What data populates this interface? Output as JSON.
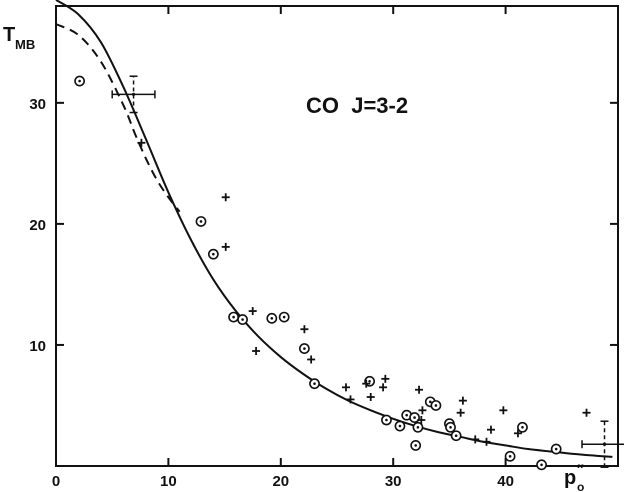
{
  "chart_data": {
    "type": "scatter",
    "title": "",
    "annotation": "CO  J=3-2",
    "ylabel": "T",
    "ylabel_sub": "MB",
    "xlabel": "p",
    "xlabel_sub": "o",
    "xlabel_sup": "″",
    "xlim": [
      0,
      50
    ],
    "ylim": [
      0,
      38
    ],
    "x_ticks": [
      0,
      10,
      20,
      30,
      40
    ],
    "x_tick_labels": [
      "0",
      "10",
      "20",
      "30",
      "40"
    ],
    "y_ticks": [
      10,
      20,
      30
    ],
    "y_tick_labels": [
      "10",
      "20",
      "30"
    ],
    "grid": false,
    "legend": "none",
    "series": [
      {
        "marker": "circled-dot",
        "points": [
          [
            2.1,
            31.8
          ],
          [
            12.9,
            20.2
          ],
          [
            14.0,
            17.5
          ],
          [
            15.8,
            12.3
          ],
          [
            16.6,
            12.1
          ],
          [
            19.2,
            12.2
          ],
          [
            20.3,
            12.3
          ],
          [
            22.1,
            9.7
          ],
          [
            23.0,
            6.8
          ],
          [
            27.9,
            7.0
          ],
          [
            29.4,
            3.8
          ],
          [
            30.6,
            3.3
          ],
          [
            31.2,
            4.2
          ],
          [
            31.9,
            4.0
          ],
          [
            32.0,
            1.7
          ],
          [
            32.2,
            3.2
          ],
          [
            33.3,
            5.3
          ],
          [
            33.8,
            5.0
          ],
          [
            35.0,
            3.5
          ],
          [
            35.1,
            3.2
          ],
          [
            35.6,
            2.5
          ],
          [
            40.4,
            0.8
          ],
          [
            41.5,
            3.2
          ],
          [
            43.2,
            0.1
          ],
          [
            44.5,
            1.4
          ]
        ]
      },
      {
        "marker": "plus",
        "points": [
          [
            7.6,
            26.7
          ],
          [
            15.1,
            22.2
          ],
          [
            15.1,
            18.1
          ],
          [
            17.5,
            12.8
          ],
          [
            17.8,
            9.5
          ],
          [
            22.1,
            11.3
          ],
          [
            22.7,
            8.8
          ],
          [
            25.8,
            6.5
          ],
          [
            26.2,
            5.5
          ],
          [
            27.6,
            6.8
          ],
          [
            28.0,
            5.7
          ],
          [
            29.1,
            6.5
          ],
          [
            29.3,
            7.2
          ],
          [
            32.3,
            6.3
          ],
          [
            32.6,
            4.6
          ],
          [
            32.5,
            3.8
          ],
          [
            36.0,
            4.4
          ],
          [
            36.2,
            5.4
          ],
          [
            37.3,
            2.2
          ],
          [
            38.3,
            2.0
          ],
          [
            38.7,
            3.0
          ],
          [
            39.8,
            4.6
          ],
          [
            41.1,
            2.7
          ],
          [
            47.2,
            4.4
          ]
        ]
      }
    ],
    "error_bars": [
      {
        "x": 6.9,
        "y": 30.7,
        "x_err": 1.9,
        "y_err": 1.5
      },
      {
        "x": 48.8,
        "y": 1.8,
        "x_err": 2.0,
        "y_err": 1.9
      }
    ],
    "curves": [
      {
        "style": "solid",
        "x": [
          0,
          2,
          4,
          6,
          8,
          10,
          12,
          14,
          16,
          18,
          20,
          22,
          24,
          26,
          28,
          30,
          32,
          34,
          36,
          38,
          40,
          42,
          44,
          46,
          48,
          49.5
        ],
        "y": [
          38.5,
          37.3,
          35.0,
          31.3,
          27.0,
          22.6,
          18.7,
          15.4,
          12.8,
          10.7,
          9.0,
          7.6,
          6.4,
          5.4,
          4.6,
          3.9,
          3.3,
          2.8,
          2.4,
          2.0,
          1.7,
          1.4,
          1.2,
          1.0,
          0.85,
          0.75
        ]
      },
      {
        "style": "dashed",
        "x": [
          0,
          2,
          4,
          6,
          7,
          8,
          9,
          10,
          11
        ],
        "y": [
          36.5,
          35.6,
          33.4,
          29.8,
          27.5,
          25.4,
          23.6,
          22.2,
          21.0
        ]
      }
    ]
  }
}
